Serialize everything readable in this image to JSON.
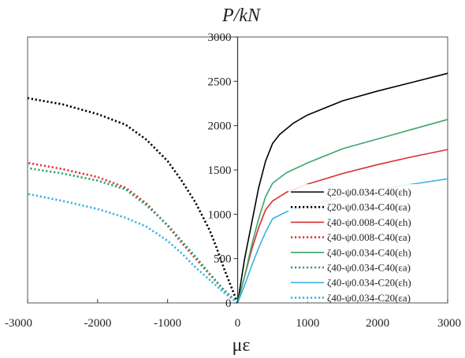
{
  "chart_data": {
    "type": "line",
    "title": "",
    "xlabel": "με",
    "ylabel": "P/kN",
    "xlim": [
      -3000,
      3000
    ],
    "ylim": [
      0,
      3000
    ],
    "x_ticks": [
      "-3000",
      "-2000",
      "-1000",
      "0",
      "1000",
      "2000",
      "3000"
    ],
    "y_ticks": [
      "0",
      "500",
      "1000",
      "1500",
      "2000",
      "2500",
      "3000"
    ],
    "grid": false,
    "legend_position": "bottom-right",
    "series": [
      {
        "name": "ζ20-ψ0.034-C40(εh)",
        "color": "#000000",
        "dash": "solid",
        "points": [
          [
            0,
            0
          ],
          [
            100,
            500
          ],
          [
            200,
            900
          ],
          [
            300,
            1300
          ],
          [
            400,
            1600
          ],
          [
            500,
            1800
          ],
          [
            600,
            1900
          ],
          [
            800,
            2030
          ],
          [
            1000,
            2120
          ],
          [
            1500,
            2280
          ],
          [
            2000,
            2390
          ],
          [
            2500,
            2490
          ],
          [
            3000,
            2590
          ]
        ]
      },
      {
        "name": "ζ20-ψ0.034-C40(εa)",
        "color": "#000000",
        "dash": "dotted",
        "points": [
          [
            0,
            0
          ],
          [
            -100,
            200
          ],
          [
            -200,
            400
          ],
          [
            -300,
            620
          ],
          [
            -400,
            820
          ],
          [
            -600,
            1130
          ],
          [
            -800,
            1380
          ],
          [
            -1000,
            1600
          ],
          [
            -1300,
            1840
          ],
          [
            -1600,
            2010
          ],
          [
            -2000,
            2130
          ],
          [
            -2500,
            2240
          ],
          [
            -3000,
            2310
          ]
        ]
      },
      {
        "name": "ζ40-ψ0.008-C40(εh)",
        "color": "#d92f2f",
        "dash": "solid",
        "points": [
          [
            0,
            0
          ],
          [
            100,
            300
          ],
          [
            200,
            600
          ],
          [
            300,
            850
          ],
          [
            400,
            1050
          ],
          [
            500,
            1150
          ],
          [
            700,
            1250
          ],
          [
            1000,
            1340
          ],
          [
            1500,
            1460
          ],
          [
            2000,
            1560
          ],
          [
            2500,
            1650
          ],
          [
            3000,
            1730
          ]
        ]
      },
      {
        "name": "ζ40-ψ0.008-C40(εa)",
        "color": "#e23131",
        "dash": "dotted",
        "points": [
          [
            0,
            0
          ],
          [
            -200,
            150
          ],
          [
            -400,
            320
          ],
          [
            -600,
            500
          ],
          [
            -800,
            680
          ],
          [
            -1000,
            870
          ],
          [
            -1300,
            1120
          ],
          [
            -1600,
            1300
          ],
          [
            -2000,
            1420
          ],
          [
            -2500,
            1510
          ],
          [
            -3000,
            1580
          ]
        ]
      },
      {
        "name": "ζ40-ψ0.034-C40(εh)",
        "color": "#3aa66b",
        "dash": "solid",
        "points": [
          [
            0,
            0
          ],
          [
            100,
            300
          ],
          [
            200,
            650
          ],
          [
            300,
            950
          ],
          [
            400,
            1200
          ],
          [
            500,
            1350
          ],
          [
            700,
            1470
          ],
          [
            1000,
            1580
          ],
          [
            1500,
            1740
          ],
          [
            2000,
            1850
          ],
          [
            2500,
            1960
          ],
          [
            3000,
            2070
          ]
        ]
      },
      {
        "name": "ζ40-ψ0.034-C40(εa)",
        "color": "#2fa06a",
        "dash": "dotted",
        "points": [
          [
            0,
            0
          ],
          [
            -200,
            150
          ],
          [
            -400,
            330
          ],
          [
            -600,
            520
          ],
          [
            -800,
            700
          ],
          [
            -1000,
            880
          ],
          [
            -1300,
            1100
          ],
          [
            -1600,
            1280
          ],
          [
            -2000,
            1380
          ],
          [
            -2500,
            1460
          ],
          [
            -3000,
            1520
          ]
        ]
      },
      {
        "name": "ζ40-ψ0.034-C20(εh)",
        "color": "#3cb2e3",
        "dash": "solid",
        "points": [
          [
            0,
            0
          ],
          [
            100,
            200
          ],
          [
            200,
            420
          ],
          [
            300,
            620
          ],
          [
            400,
            800
          ],
          [
            500,
            950
          ],
          [
            700,
            1030
          ],
          [
            1000,
            1100
          ],
          [
            1500,
            1200
          ],
          [
            2000,
            1280
          ],
          [
            2500,
            1340
          ],
          [
            3000,
            1400
          ]
        ]
      },
      {
        "name": "ζ40-ψ0,034-C20(εa)",
        "color": "#35b3e3",
        "dash": "dotted",
        "points": [
          [
            0,
            0
          ],
          [
            -200,
            120
          ],
          [
            -400,
            260
          ],
          [
            -600,
            400
          ],
          [
            -800,
            560
          ],
          [
            -1000,
            700
          ],
          [
            -1300,
            860
          ],
          [
            -1600,
            960
          ],
          [
            -2000,
            1060
          ],
          [
            -2500,
            1150
          ],
          [
            -3000,
            1230
          ]
        ]
      }
    ]
  }
}
